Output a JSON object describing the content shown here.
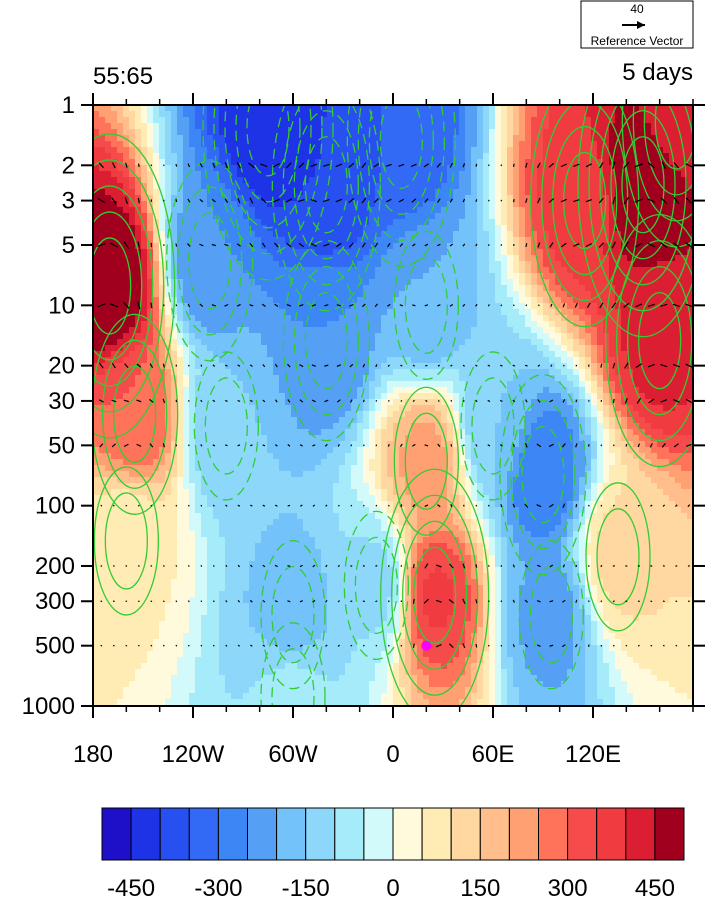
{
  "chart_data": {
    "type": "heatmap",
    "title_left": "55:65",
    "title_right": "5 days",
    "reference_vector": {
      "value": "40",
      "label": "Reference Vector"
    },
    "x_ticks": [
      {
        "lon": -180,
        "label": "180"
      },
      {
        "lon": -120,
        "label": "120W"
      },
      {
        "lon": -60,
        "label": "60W"
      },
      {
        "lon": 0,
        "label": "0"
      },
      {
        "lon": 60,
        "label": "60E"
      },
      {
        "lon": 120,
        "label": "120E"
      }
    ],
    "xlim": [
      -180,
      180
    ],
    "y_ticks": [
      {
        "p": 1,
        "label": "1"
      },
      {
        "p": 2,
        "label": "2"
      },
      {
        "p": 3,
        "label": "3"
      },
      {
        "p": 5,
        "label": "5"
      },
      {
        "p": 10,
        "label": "10"
      },
      {
        "p": 20,
        "label": "20"
      },
      {
        "p": 30,
        "label": "30"
      },
      {
        "p": 50,
        "label": "50"
      },
      {
        "p": 100,
        "label": "100"
      },
      {
        "p": 200,
        "label": "200"
      },
      {
        "p": 300,
        "label": "300"
      },
      {
        "p": 500,
        "label": "500"
      },
      {
        "p": 1000,
        "label": "1000"
      }
    ],
    "ylim": [
      1000,
      1
    ],
    "y_scale": "log",
    "colorbar": {
      "colors": [
        "#1E0FC8",
        "#1E32E6",
        "#2850F0",
        "#3269F5",
        "#3C87F5",
        "#55A0F5",
        "#73C3FA",
        "#8CD7FA",
        "#A5EBFA",
        "#D2FAFA",
        "#FFFADC",
        "#FFEBB4",
        "#FFD7A0",
        "#FFBE8C",
        "#FFA073",
        "#FF735A",
        "#F54B4B",
        "#F03C41",
        "#DC1E32",
        "#A0001E"
      ],
      "ticks": [
        -450,
        -300,
        -150,
        0,
        150,
        300,
        450
      ],
      "tick_labels": [
        "-450",
        "-300",
        "-150",
        "0",
        "150",
        "300",
        "450"
      ],
      "range": [
        -500,
        500
      ]
    },
    "field_anomalies": [
      {
        "lon": -170,
        "p": 8,
        "value": 520
      },
      {
        "lon": -155,
        "p": 35,
        "value": 300
      },
      {
        "lon": -160,
        "p": 150,
        "value": 60
      },
      {
        "lon": -110,
        "p": 6,
        "value": -250
      },
      {
        "lon": -100,
        "p": 40,
        "value": -150
      },
      {
        "lon": -75,
        "p": 1.3,
        "value": -450
      },
      {
        "lon": -40,
        "p": 2.5,
        "value": -400
      },
      {
        "lon": -40,
        "p": 15,
        "value": -250
      },
      {
        "lon": -60,
        "p": 350,
        "value": -180
      },
      {
        "lon": -60,
        "p": 900,
        "value": -80
      },
      {
        "lon": -10,
        "p": 250,
        "value": -120
      },
      {
        "lon": 20,
        "p": 10,
        "value": -200
      },
      {
        "lon": 5,
        "p": 1.5,
        "value": -350
      },
      {
        "lon": 20,
        "p": 60,
        "value": 220
      },
      {
        "lon": 25,
        "p": 280,
        "value": 360
      },
      {
        "lon": 60,
        "p": 40,
        "value": -150
      },
      {
        "lon": 90,
        "p": 70,
        "value": -300
      },
      {
        "lon": 95,
        "p": 350,
        "value": -220
      },
      {
        "lon": 135,
        "p": 180,
        "value": 120
      },
      {
        "lon": 115,
        "p": 3,
        "value": 380
      },
      {
        "lon": 150,
        "p": 2.5,
        "value": 520
      },
      {
        "lon": 160,
        "p": 15,
        "value": 420
      },
      {
        "lon": 170,
        "p": 1.2,
        "value": 420
      }
    ],
    "contour_color": "#33CC33",
    "marker": {
      "lon": 20,
      "p": 500,
      "color": "#FF00FF"
    },
    "wind_vectors": {
      "color": "#000000"
    }
  }
}
